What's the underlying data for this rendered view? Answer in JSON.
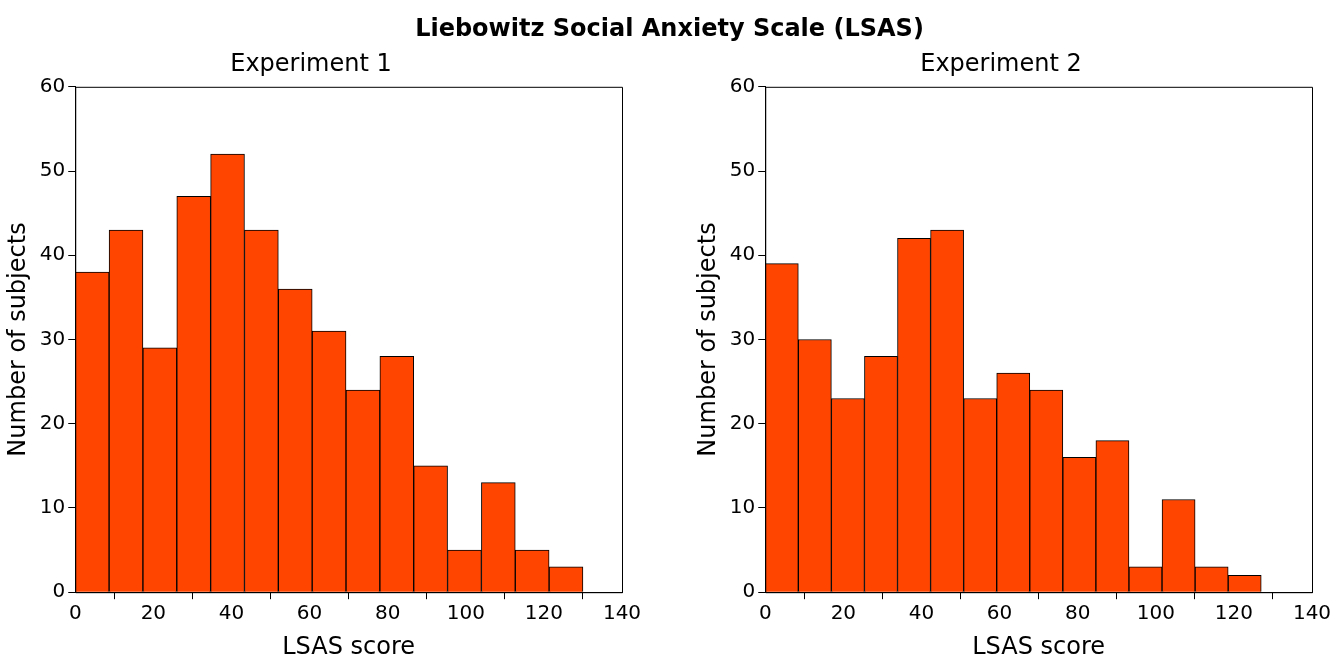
{
  "chart_data": [
    {
      "type": "other",
      "title": "Liebowitz Social Anxiety Scale (LSAS)"
    },
    {
      "type": "histogram",
      "title": "Experiment 1",
      "xlabel": "LSAS score",
      "ylabel": "Number of subjects",
      "color": "#ff4500",
      "bins": [
        0,
        8.67,
        17.33,
        26,
        34.67,
        43.33,
        52,
        60.67,
        69.33,
        78,
        86.67,
        95.33,
        104,
        112.67,
        121.33,
        130
      ],
      "values": [
        38,
        43,
        29,
        47,
        52,
        43,
        36,
        31,
        24,
        28,
        15,
        5,
        13,
        5,
        3
      ],
      "xlim": [
        0,
        140
      ],
      "xticks": [
        0,
        20,
        40,
        60,
        80,
        100,
        120,
        140
      ],
      "ylim": [
        0,
        60
      ],
      "yticks": [
        0,
        10,
        20,
        30,
        40,
        50,
        60
      ],
      "grid": false,
      "legend": false
    },
    {
      "type": "histogram",
      "title": "Experiment 2",
      "xlabel": "LSAS score",
      "ylabel": "Number of subjects",
      "color": "#ff4500",
      "bins": [
        0,
        8.47,
        16.93,
        25.4,
        33.87,
        42.33,
        50.8,
        59.27,
        67.73,
        76.2,
        84.67,
        93.13,
        101.6,
        110.07,
        118.53,
        127
      ],
      "values": [
        39,
        30,
        23,
        28,
        42,
        43,
        23,
        26,
        24,
        16,
        18,
        3,
        11,
        3,
        2
      ],
      "xlim": [
        0,
        140
      ],
      "xticks": [
        0,
        20,
        40,
        60,
        80,
        100,
        120,
        140
      ],
      "ylim": [
        0,
        60
      ],
      "yticks": [
        0,
        10,
        20,
        30,
        40,
        50,
        60
      ],
      "grid": false,
      "legend": false
    }
  ]
}
